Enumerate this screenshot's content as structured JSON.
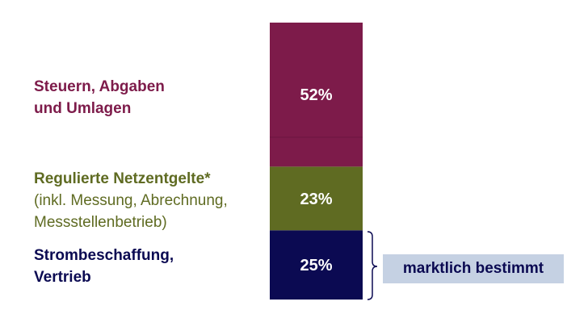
{
  "chart_data": {
    "type": "bar",
    "stacked": true,
    "orientation": "vertical",
    "categories": [
      ""
    ],
    "series": [
      {
        "name": "Strombeschaffung, Vertrieb",
        "values": [
          25
        ],
        "label": "25%",
        "color": "#0b0a52"
      },
      {
        "name": "Regulierte Netzentgelte*",
        "values": [
          23
        ],
        "label": "23%",
        "color": "#5f6b22"
      },
      {
        "name": "Steuern, Abgaben und Umlagen",
        "values": [
          52
        ],
        "label": "52%",
        "color": "#7d1b4a"
      }
    ],
    "ylim": [
      0,
      100
    ],
    "grid": false,
    "title": "",
    "xlabel": "",
    "ylabel": ""
  },
  "labels": {
    "steuern": {
      "line1": "Steuern, Abgaben",
      "line2": "und Umlagen",
      "color": "#7d1b4a"
    },
    "netz": {
      "line1": "Regulierte Netzentgelte*",
      "line2": "(inkl. Messung, Abrechnung,",
      "line3": "Messstellenbetrieb)",
      "color": "#5f6b22"
    },
    "strom": {
      "line1": "Strombeschaffung,",
      "line2": "Vertrieb",
      "color": "#0b0a52"
    }
  },
  "annotation": {
    "text": "marktlich bestimmt",
    "box_color": "#c5d1e3",
    "text_color": "#0b0a52"
  }
}
